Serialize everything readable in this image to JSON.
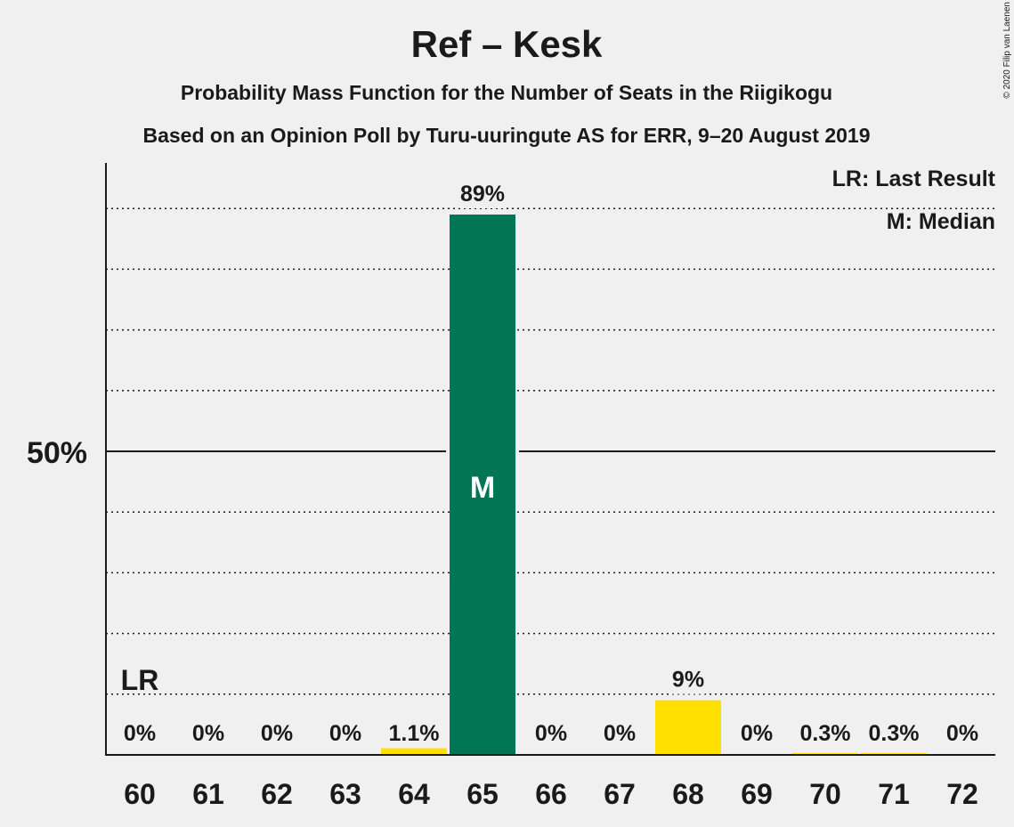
{
  "header": {
    "title": "Ref – Kesk",
    "subtitle1": "Probability Mass Function for the Number of Seats in the Riigikogu",
    "subtitle2": "Based on an Opinion Poll by Turu-uuringute AS for ERR, 9–20 August 2019",
    "copyright": "© 2020 Filip van Laenen"
  },
  "legend": {
    "lr": "LR: Last Result",
    "median": "M: Median"
  },
  "colors": {
    "background": "#f0f0f0",
    "median_bar": "#007656",
    "other_bar": "#ffe000",
    "text": "#1a1a1a"
  },
  "chart_data": {
    "type": "bar",
    "categories": [
      "60",
      "61",
      "62",
      "63",
      "64",
      "65",
      "66",
      "67",
      "68",
      "69",
      "70",
      "71",
      "72"
    ],
    "values": [
      0,
      0,
      0,
      0,
      1.1,
      89,
      0,
      0,
      9,
      0,
      0.3,
      0.3,
      0
    ],
    "value_labels": [
      "0%",
      "0%",
      "0%",
      "0%",
      "1.1%",
      "89%",
      "0%",
      "0%",
      "9%",
      "0%",
      "0.3%",
      "0.3%",
      "0%"
    ],
    "ylim": [
      0,
      100
    ],
    "y_major_tick": 50,
    "y_major_label": "50%",
    "y_minor_gridlines": [
      10,
      20,
      30,
      40,
      60,
      70,
      80,
      90
    ],
    "median_category": "65",
    "median_marker": "M",
    "last_result_category": "60",
    "last_result_marker": "LR",
    "legend_position": "top-right"
  }
}
